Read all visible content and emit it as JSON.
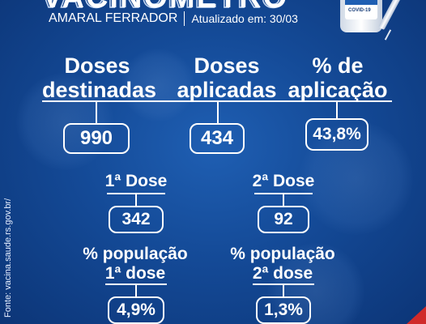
{
  "header": {
    "title": "VACINÔMETRO",
    "municipality": "AMARAL FERRADOR",
    "updated": "Atualizado em: 30/03"
  },
  "vial_label": "COVID-19",
  "summary": {
    "destined_label_line1": "Doses",
    "destined_label_line2": "destinadas",
    "destined_value": "990",
    "applied_label_line1": "Doses",
    "applied_label_line2": "aplicadas",
    "applied_value": "434",
    "percent_label_line1": "% de",
    "percent_label_line2": "aplicação",
    "percent_value": "43,8%"
  },
  "doses": {
    "first_label": "1ª Dose",
    "first_value": "342",
    "second_label": "2ª Dose",
    "second_value": "92"
  },
  "population": {
    "first_label_line1": "% população",
    "first_label_line2": "1ª dose",
    "first_value": "4,9%",
    "second_label_line1": "% população",
    "second_label_line2": "2ª dose",
    "second_value": "1,3%"
  },
  "source": "Fonte: vacina.saude.rs.gov.br/",
  "colors": {
    "background": "#144a97",
    "text": "#ffffff",
    "corner_accent": "#d02a2a"
  }
}
